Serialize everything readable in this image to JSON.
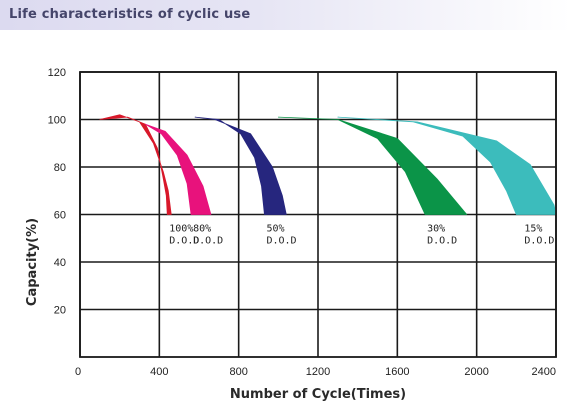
{
  "header": {
    "title": "Life characteristics of cyclic use"
  },
  "chart_data": {
    "type": "area",
    "title": "Life characteristics of cyclic use",
    "xlabel": "Number of Cycle(Times)",
    "ylabel": "Capacity(%)",
    "xlim": [
      0,
      2400
    ],
    "ylim": [
      0,
      120
    ],
    "x_ticks": [
      "0",
      "400",
      "800",
      "1200",
      "1600",
      "2000",
      "2400"
    ],
    "y_ticks": [
      "20",
      "40",
      "60",
      "80",
      "100",
      "120"
    ],
    "grid": true,
    "series": [
      {
        "label": [
          "100%",
          "D.O.D"
        ],
        "color": "#d8182a",
        "upper": [
          [
            100,
            100
          ],
          [
            200,
            102
          ],
          [
            300,
            99
          ],
          [
            370,
            90
          ],
          [
            420,
            78
          ],
          [
            445,
            70
          ],
          [
            460,
            60
          ]
        ],
        "lower": [
          [
            100,
            100
          ],
          [
            240,
            101
          ],
          [
            330,
            98
          ],
          [
            390,
            88
          ],
          [
            420,
            75
          ],
          [
            435,
            68
          ],
          [
            440,
            60
          ]
        ]
      },
      {
        "label": [
          "80%",
          "D.O.D"
        ],
        "color": "#e8127c",
        "upper": [
          [
            330,
            98
          ],
          [
            430,
            95
          ],
          [
            540,
            85
          ],
          [
            620,
            72
          ],
          [
            660,
            60
          ]
        ],
        "lower": [
          [
            330,
            98
          ],
          [
            410,
            94
          ],
          [
            490,
            85
          ],
          [
            540,
            73
          ],
          [
            560,
            60
          ]
        ]
      },
      {
        "label": [
          "50%",
          "D.O.D"
        ],
        "color": "#26267e",
        "upper": [
          [
            580,
            101
          ],
          [
            680,
            100
          ],
          [
            860,
            94
          ],
          [
            970,
            80
          ],
          [
            1020,
            68
          ],
          [
            1040,
            60
          ]
        ],
        "lower": [
          [
            580,
            101
          ],
          [
            700,
            100
          ],
          [
            810,
            94
          ],
          [
            880,
            84
          ],
          [
            915,
            72
          ],
          [
            930,
            60
          ]
        ]
      },
      {
        "label": [
          "30%",
          "D.O.D"
        ],
        "color": "#0b9448",
        "upper": [
          [
            1000,
            101
          ],
          [
            1300,
            100
          ],
          [
            1600,
            92
          ],
          [
            1800,
            75
          ],
          [
            1950,
            60
          ]
        ],
        "lower": [
          [
            1000,
            101
          ],
          [
            1300,
            100
          ],
          [
            1500,
            92
          ],
          [
            1640,
            78
          ],
          [
            1740,
            60
          ]
        ]
      },
      {
        "label": [
          "15%",
          "D.O.D"
        ],
        "color": "#3cbcbc",
        "upper": [
          [
            1300,
            101
          ],
          [
            1700,
            99
          ],
          [
            2100,
            91
          ],
          [
            2270,
            81
          ],
          [
            2390,
            64
          ],
          [
            2400,
            60
          ]
        ],
        "lower": [
          [
            1300,
            101
          ],
          [
            1680,
            99
          ],
          [
            1930,
            93
          ],
          [
            2070,
            82
          ],
          [
            2150,
            70
          ],
          [
            2200,
            60
          ]
        ]
      }
    ]
  }
}
